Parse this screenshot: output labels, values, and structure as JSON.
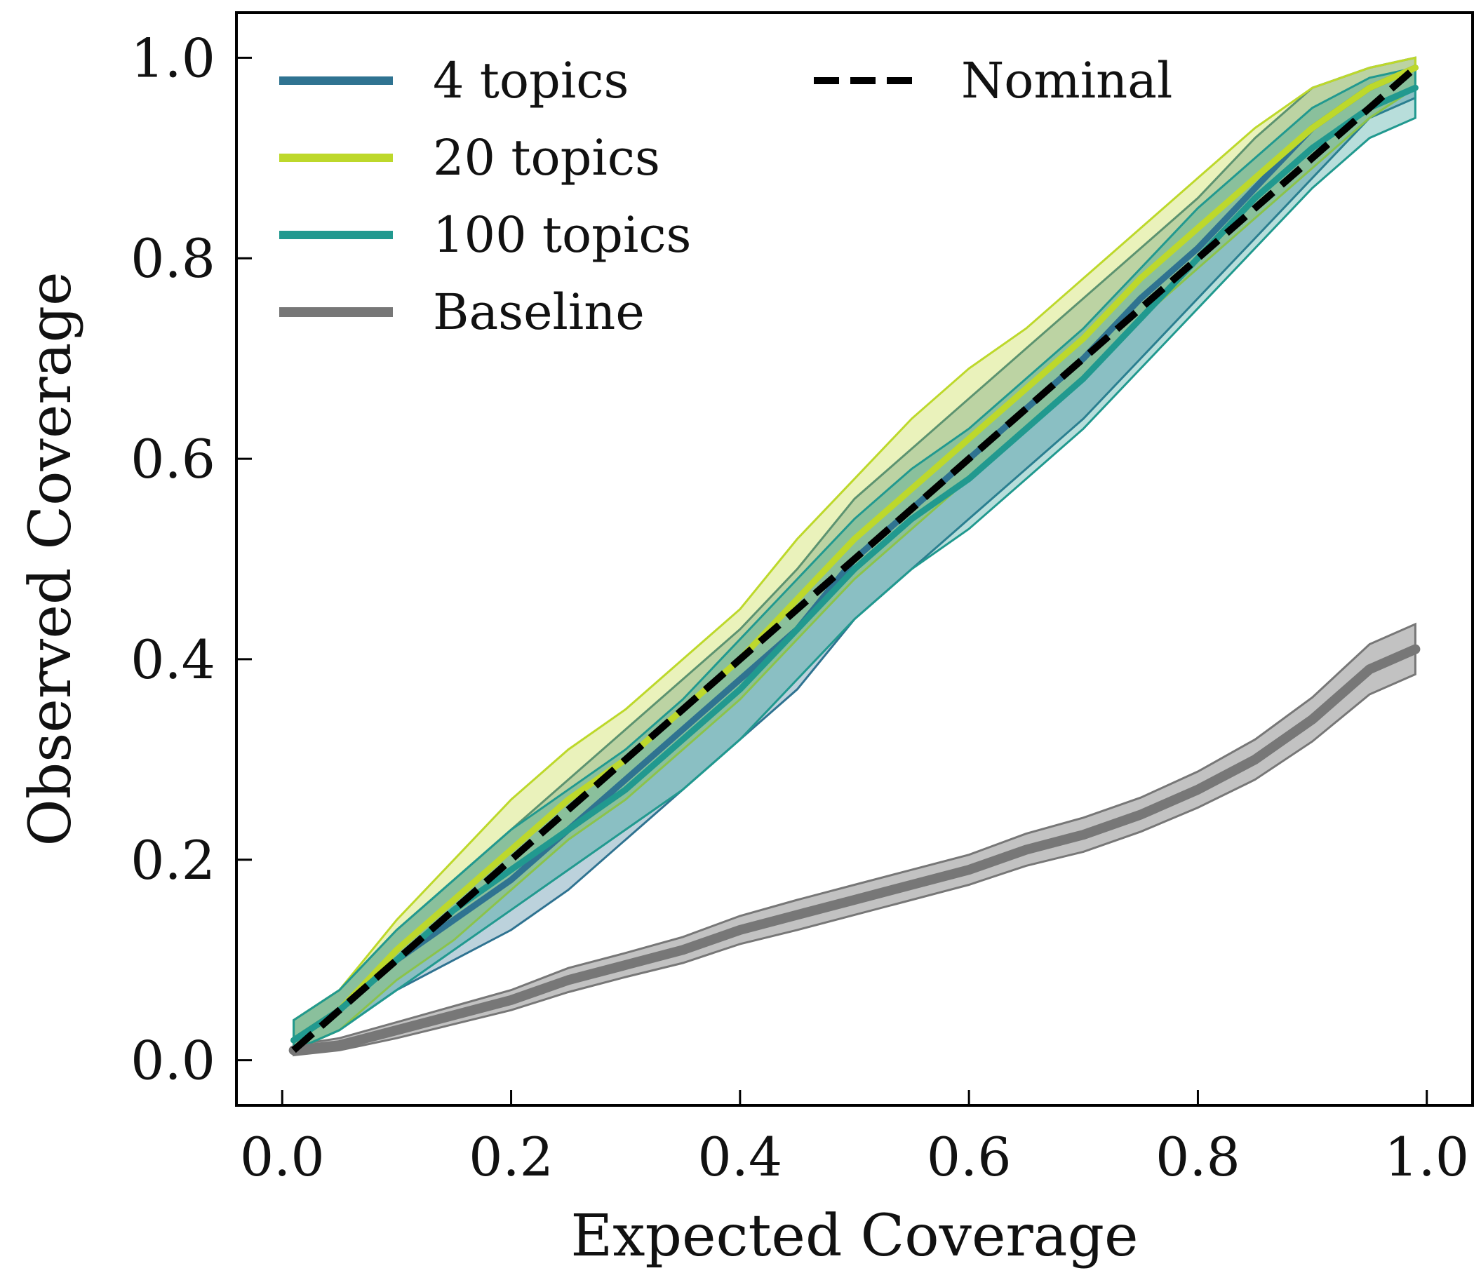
{
  "chart_data": {
    "type": "line",
    "xlabel": "Expected Coverage",
    "ylabel": "Observed Coverage",
    "xlim": [
      -0.04,
      1.04
    ],
    "ylim": [
      -0.045,
      1.045
    ],
    "x_ticks": [
      "0.0",
      "0.2",
      "0.4",
      "0.6",
      "0.8",
      "1.0"
    ],
    "y_ticks": [
      "0.0",
      "0.2",
      "0.4",
      "0.6",
      "0.8",
      "1.0"
    ],
    "grid": false,
    "legend_position": "top-left",
    "x": [
      0.01,
      0.05,
      0.1,
      0.15,
      0.2,
      0.25,
      0.3,
      0.35,
      0.4,
      0.45,
      0.5,
      0.55,
      0.6,
      0.65,
      0.7,
      0.75,
      0.8,
      0.85,
      0.9,
      0.95,
      0.99
    ],
    "series": [
      {
        "name": "4 topics",
        "color": "#2f7391",
        "values": [
          0.02,
          0.05,
          0.1,
          0.14,
          0.18,
          0.23,
          0.28,
          0.33,
          0.38,
          0.43,
          0.5,
          0.55,
          0.6,
          0.65,
          0.7,
          0.76,
          0.81,
          0.87,
          0.93,
          0.97,
          0.99
        ],
        "lower": [
          0.01,
          0.03,
          0.07,
          0.1,
          0.13,
          0.17,
          0.22,
          0.27,
          0.32,
          0.37,
          0.44,
          0.49,
          0.54,
          0.59,
          0.64,
          0.7,
          0.76,
          0.82,
          0.88,
          0.94,
          0.96
        ],
        "upper": [
          0.04,
          0.07,
          0.13,
          0.18,
          0.23,
          0.28,
          0.33,
          0.38,
          0.43,
          0.49,
          0.56,
          0.61,
          0.66,
          0.71,
          0.76,
          0.81,
          0.86,
          0.92,
          0.97,
          0.99,
          1.0
        ]
      },
      {
        "name": "20 topics",
        "color": "#bdd82b",
        "values": [
          0.02,
          0.05,
          0.11,
          0.16,
          0.21,
          0.26,
          0.3,
          0.35,
          0.4,
          0.46,
          0.52,
          0.57,
          0.62,
          0.67,
          0.72,
          0.78,
          0.83,
          0.88,
          0.93,
          0.97,
          0.99
        ],
        "lower": [
          0.01,
          0.03,
          0.08,
          0.12,
          0.17,
          0.22,
          0.26,
          0.31,
          0.36,
          0.42,
          0.48,
          0.53,
          0.58,
          0.63,
          0.68,
          0.74,
          0.79,
          0.84,
          0.89,
          0.94,
          0.97
        ],
        "upper": [
          0.04,
          0.07,
          0.14,
          0.2,
          0.26,
          0.31,
          0.35,
          0.4,
          0.45,
          0.52,
          0.58,
          0.64,
          0.69,
          0.73,
          0.78,
          0.83,
          0.88,
          0.93,
          0.97,
          0.99,
          1.0
        ]
      },
      {
        "name": "100 topics",
        "color": "#21998f",
        "values": [
          0.02,
          0.05,
          0.1,
          0.15,
          0.19,
          0.23,
          0.27,
          0.32,
          0.37,
          0.43,
          0.49,
          0.54,
          0.58,
          0.63,
          0.68,
          0.74,
          0.8,
          0.86,
          0.91,
          0.95,
          0.97
        ],
        "lower": [
          0.01,
          0.03,
          0.07,
          0.11,
          0.15,
          0.19,
          0.23,
          0.27,
          0.32,
          0.38,
          0.44,
          0.49,
          0.53,
          0.58,
          0.63,
          0.69,
          0.75,
          0.81,
          0.87,
          0.92,
          0.94
        ],
        "upper": [
          0.04,
          0.07,
          0.13,
          0.18,
          0.23,
          0.27,
          0.31,
          0.36,
          0.42,
          0.48,
          0.54,
          0.59,
          0.63,
          0.68,
          0.73,
          0.79,
          0.85,
          0.9,
          0.95,
          0.98,
          0.99
        ]
      },
      {
        "name": "Baseline",
        "color": "#777777",
        "values": [
          0.01,
          0.015,
          0.03,
          0.045,
          0.06,
          0.08,
          0.095,
          0.11,
          0.13,
          0.145,
          0.16,
          0.175,
          0.19,
          0.21,
          0.225,
          0.245,
          0.27,
          0.3,
          0.34,
          0.39,
          0.41
        ],
        "lower": [
          0.005,
          0.01,
          0.022,
          0.036,
          0.05,
          0.068,
          0.083,
          0.097,
          0.116,
          0.13,
          0.145,
          0.16,
          0.175,
          0.194,
          0.208,
          0.228,
          0.252,
          0.28,
          0.318,
          0.365,
          0.385
        ],
        "upper": [
          0.015,
          0.022,
          0.038,
          0.054,
          0.07,
          0.092,
          0.107,
          0.123,
          0.144,
          0.16,
          0.175,
          0.19,
          0.205,
          0.226,
          0.242,
          0.262,
          0.288,
          0.32,
          0.362,
          0.415,
          0.435
        ]
      }
    ],
    "reference_line": {
      "name": "Nominal",
      "style": "dashed",
      "color": "#000000",
      "points": [
        [
          0.01,
          0.01
        ],
        [
          0.99,
          0.99
        ]
      ]
    }
  }
}
